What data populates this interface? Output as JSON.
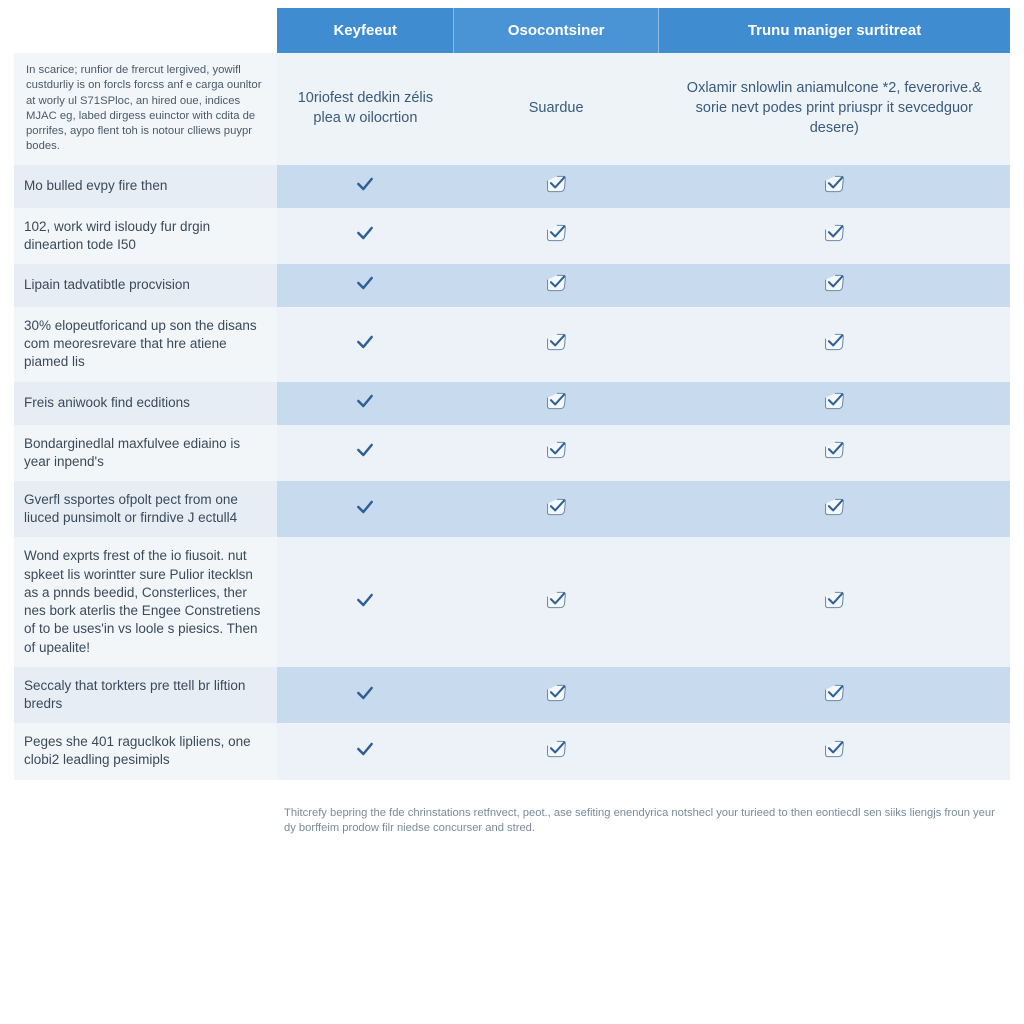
{
  "colors": {
    "header_bg_1": "#3f8cd1",
    "header_bg_2": "#4a94d6",
    "header_bg_3": "#3f8cd1",
    "header_text": "#ffffff",
    "intro_row_bg": "#eef3f8",
    "band_a": "#ecf2f8",
    "band_b": "#c8daed",
    "label_bg_a": "#f3f6f9",
    "label_bg_b": "#e7edf4",
    "check_strong": "#2e5f96",
    "check_outline_stroke": "#6b89a8",
    "check_outline_fill": "#f4f8fc",
    "text_label": "#3a4a5a",
    "text_intro": "#4a5a6a",
    "footnote": "#7a8a9a"
  },
  "columns": [
    {
      "id": "keyfeeut",
      "label": "Keyfeeut"
    },
    {
      "id": "osocontsiner",
      "label": "Osocontsiner"
    },
    {
      "id": "trunu",
      "label": "Trunu maniger surtitreat"
    }
  ],
  "intro": {
    "label": "In scarice; runfior de frercut lergived, yowifl custdurliy is on forcls forcss anf e carga ounltor at worly ul S71SPloc, an hired oue, indices MJAC eg, labed dirgess euinctor with cdita de porrifes, aypo flent toh is notour clliews puypr bodes.",
    "values": [
      "10riofest dedkin zélis plea w oilocrtion",
      "Suardue",
      "Oxlamir snlowlin aniamulcone *2, feverorive.& sorie nevt podes print priuspr it sevcedguor desere)"
    ]
  },
  "rows": [
    {
      "label": "Mo bulled evpy fire then",
      "marks": [
        "strong",
        "outline",
        "outline"
      ]
    },
    {
      "label": "102, work wird isloudy fur drgin dineartion tode I50",
      "marks": [
        "strong",
        "outline",
        "outline"
      ]
    },
    {
      "label": "Lipain tadvatibtle procvision",
      "marks": [
        "strong",
        "outline",
        "outline"
      ]
    },
    {
      "label": "30% elopeutforicand up son the disans com meoresrevare that hre atiene piamed lis",
      "marks": [
        "strong",
        "outline",
        "outline"
      ]
    },
    {
      "label": "Freis aniwook find ecditions",
      "marks": [
        "strong",
        "outline",
        "outline"
      ]
    },
    {
      "label": "Bondarginedlal maxfulvee ediaino is year inpend's",
      "marks": [
        "strong",
        "outline",
        "outline"
      ]
    },
    {
      "label": "Gverfl ssportes ofpolt pect from one liuced punsimolt or firndive J ectull4",
      "marks": [
        "strong",
        "outline",
        "outline"
      ]
    },
    {
      "label": "Wond exprts frest of the io fiusoit. nut spkeet lis worintter sure Pulior itecklsn as a pnnds beedid, Consterlices, ther nes bork aterlis the Engee Constretiens of to be uses'in vs loole s piesics. Then of upealite!",
      "marks": [
        "strong",
        "outline",
        "outline"
      ]
    },
    {
      "label": "Seccaly that torkters pre ttell br liftion bredrs",
      "marks": [
        "strong",
        "outline",
        "outline"
      ]
    },
    {
      "label": "Peges she 401 raguclkok lipliens, one clobi2 leadling pesimipls",
      "marks": [
        "strong",
        "outline",
        "outline"
      ]
    }
  ],
  "footnote": "Thitcrefy bepring the fde chrinstations retfnvect, peot., ase sefiting enendyrica notshecl your turieed to then eontiecdl sen siiks liengjs froun yeur dy borffeim prodow filr niedse concurser and stred."
}
